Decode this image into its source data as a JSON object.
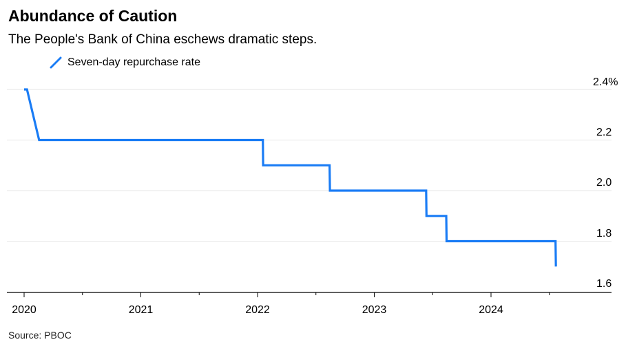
{
  "title": "Abundance of Caution",
  "subtitle": "The People's Bank of China eschews dramatic steps.",
  "source": "Source: PBOC",
  "chart_data": {
    "type": "line",
    "title": "Abundance of Caution",
    "subtitle": "The People's Bank of China eschews dramatic steps.",
    "series": [
      {
        "name": "Seven-day repurchase rate",
        "color": "#1a7cf5",
        "points": [
          [
            "2020-01-01",
            2.4
          ],
          [
            "2020-01-10",
            2.4
          ],
          [
            "2020-02-17",
            2.2
          ],
          [
            "2020-03-30",
            2.2
          ],
          [
            "2022-01-17",
            2.2
          ],
          [
            "2022-01-18",
            2.1
          ],
          [
            "2022-08-14",
            2.1
          ],
          [
            "2022-08-15",
            2.0
          ],
          [
            "2023-06-12",
            2.0
          ],
          [
            "2023-06-13",
            1.9
          ],
          [
            "2023-08-14",
            1.9
          ],
          [
            "2023-08-15",
            1.8
          ],
          [
            "2024-07-21",
            1.8
          ],
          [
            "2024-07-22",
            1.7
          ]
        ]
      }
    ],
    "x_ticks": [
      "2020",
      "2021",
      "2022",
      "2023",
      "2024"
    ],
    "y_ticks": [
      "1.6",
      "1.8",
      "2.0",
      "2.2",
      "2.4%"
    ],
    "ylim": [
      1.6,
      2.4
    ],
    "xlim": [
      "2020-01-01",
      "2024-12-31"
    ],
    "y_axis_side": "right",
    "grid": true
  }
}
